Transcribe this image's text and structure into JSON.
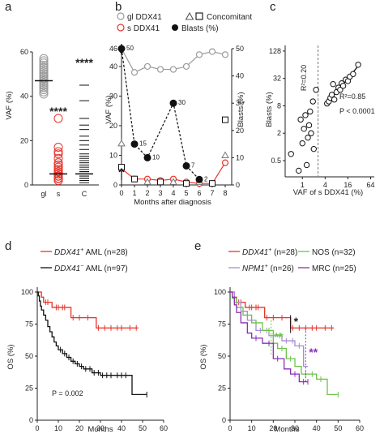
{
  "panel_letters": [
    "a",
    "b",
    "c",
    "d",
    "e"
  ],
  "colors": {
    "red": "#e8332a",
    "black": "#111111",
    "grey": "#9b9b9b",
    "green": "#6cc24a",
    "lightpurple": "#a98bd6",
    "purple": "#8a2fb8"
  },
  "chart_data": [
    {
      "id": "a",
      "type": "scatter",
      "categories": [
        "gl",
        "s",
        "C"
      ],
      "ylabel": "VAF (%)",
      "ylim": [
        0,
        60
      ],
      "yticks": [
        0,
        20,
        40,
        60
      ],
      "series": [
        {
          "category": "gl",
          "values": [
            41,
            42,
            43,
            43,
            44,
            44,
            45,
            45,
            45,
            46,
            46,
            46,
            47,
            47,
            47,
            47,
            48,
            48,
            48,
            48,
            49,
            49,
            49,
            50,
            50,
            50,
            51,
            51,
            52,
            52,
            53,
            53,
            54,
            55,
            56,
            57
          ],
          "median": 47,
          "marker": "circle-open",
          "color": "grey"
        },
        {
          "category": "s",
          "values": [
            2,
            2,
            3,
            3,
            3,
            4,
            4,
            4,
            5,
            5,
            5,
            6,
            6,
            7,
            7,
            8,
            9,
            10,
            12,
            14,
            15,
            17,
            30
          ],
          "median": 5,
          "marker": "circle-open",
          "color": "red"
        },
        {
          "category": "C",
          "values": [
            1,
            2,
            2,
            3,
            3,
            4,
            4,
            5,
            5,
            6,
            6,
            7,
            8,
            9,
            10,
            11,
            12,
            13,
            14,
            16,
            18,
            20,
            22,
            25,
            27,
            30,
            38,
            45
          ],
          "median": 5,
          "marker": "square-open",
          "color": "black"
        }
      ],
      "annotations": [
        "****",
        "****"
      ]
    },
    {
      "id": "b",
      "type": "line",
      "xlabel": "Months after diagnosis",
      "ylabel": "VAF (%)",
      "y2label": "Blasts (%)",
      "xticks": [
        0,
        1,
        2,
        3,
        4,
        5,
        6,
        7,
        8
      ],
      "xlim": [
        0,
        8
      ],
      "yticks_left": [
        0,
        10,
        20,
        30,
        40,
        46
      ],
      "yticks_right": [
        0,
        10,
        20,
        30,
        40,
        50
      ],
      "legend": [
        "gl DDX41",
        "s DDX41",
        "Concomitant",
        "Blasts (%)"
      ],
      "series": [
        {
          "name": "gl DDX41",
          "x": [
            0,
            1,
            2,
            3,
            4,
            5,
            6,
            7,
            8
          ],
          "y": [
            46,
            38,
            40,
            39,
            39,
            40,
            44,
            45,
            44
          ],
          "marker": "circle-open",
          "color": "grey"
        },
        {
          "name": "s DDX41",
          "x": [
            0,
            1,
            2,
            3,
            4,
            5,
            6,
            7,
            8
          ],
          "y": [
            5.5,
            2,
            2,
            1.5,
            2,
            1,
            0.5,
            0.5,
            7.5
          ],
          "marker": "circle-open",
          "color": "red"
        },
        {
          "name": "Concomitant",
          "x": [
            0,
            0,
            1,
            2,
            3,
            4,
            5,
            6,
            7,
            8,
            8
          ],
          "y": [
            6,
            14,
            2,
            1,
            1,
            1,
            0.5,
            1,
            0.5,
            10,
            22
          ],
          "marker": "mixed-open",
          "color": "black"
        },
        {
          "name": "Blasts (%)",
          "x": [
            0,
            1,
            2,
            4,
            5,
            6
          ],
          "y": [
            50,
            15,
            10,
            30,
            7,
            2
          ],
          "labels": [
            "50",
            "15",
            "10",
            "30",
            "7",
            "2"
          ],
          "marker": "circle-filled",
          "color": "black",
          "axis": "right"
        }
      ]
    },
    {
      "id": "c",
      "type": "scatter",
      "xlabel": "VAF of s DDX41 (%)",
      "ylabel": "Blasts (%)",
      "xticks": [
        "1",
        "4",
        "16",
        "64"
      ],
      "yticks": [
        "0.5",
        "2",
        "8",
        "32",
        "128"
      ],
      "scale": "log",
      "annotations": [
        "R²=0.20",
        "R²=0.85",
        "P < 0.0001"
      ],
      "points": [
        {
          "x": 0.5,
          "y": 0.7
        },
        {
          "x": 0.8,
          "y": 0.3
        },
        {
          "x": 0.9,
          "y": 4
        },
        {
          "x": 1.0,
          "y": 1.2
        },
        {
          "x": 1.1,
          "y": 2.5
        },
        {
          "x": 1.2,
          "y": 5
        },
        {
          "x": 1.3,
          "y": 0.4
        },
        {
          "x": 1.4,
          "y": 1.6
        },
        {
          "x": 1.5,
          "y": 3
        },
        {
          "x": 1.6,
          "y": 6
        },
        {
          "x": 1.7,
          "y": 2
        },
        {
          "x": 1.9,
          "y": 10
        },
        {
          "x": 2.0,
          "y": 0.9
        },
        {
          "x": 2.3,
          "y": 18
        },
        {
          "x": 4.5,
          "y": 9
        },
        {
          "x": 5,
          "y": 10
        },
        {
          "x": 5.5,
          "y": 12
        },
        {
          "x": 6,
          "y": 14
        },
        {
          "x": 7,
          "y": 11
        },
        {
          "x": 8,
          "y": 16
        },
        {
          "x": 9,
          "y": 20
        },
        {
          "x": 10,
          "y": 18
        },
        {
          "x": 11,
          "y": 25
        },
        {
          "x": 12,
          "y": 22
        },
        {
          "x": 14,
          "y": 30
        },
        {
          "x": 16,
          "y": 28
        },
        {
          "x": 18,
          "y": 35
        },
        {
          "x": 22,
          "y": 40
        },
        {
          "x": 30,
          "y": 64
        },
        {
          "x": 6.5,
          "y": 24
        }
      ]
    },
    {
      "id": "d",
      "type": "line",
      "xlabel": "Months",
      "ylabel": "OS (%)",
      "xticks": [
        0,
        10,
        20,
        30,
        40,
        50,
        60
      ],
      "yticks": [
        0,
        25,
        50,
        75,
        100
      ],
      "xlim": [
        0,
        60
      ],
      "ylim": [
        0,
        100
      ],
      "annotation": "P = 0.002",
      "legend": [
        {
          "prefix": "DDX41",
          "sup": "+",
          "suffix": " AML (n=28)",
          "color": "red"
        },
        {
          "prefix": "DDX41",
          "sup": "−",
          "suffix": " AML (n=97)",
          "color": "black"
        }
      ],
      "series": [
        {
          "name": "DDX41+ AML (n=28)",
          "color": "red",
          "steps": [
            [
              0,
              100
            ],
            [
              2,
              96
            ],
            [
              3,
              92
            ],
            [
              7,
              88
            ],
            [
              16,
              80
            ],
            [
              28,
              72
            ],
            [
              48,
              72
            ]
          ],
          "censors": [
            4,
            5,
            9,
            10,
            12,
            13,
            17,
            20,
            24,
            29,
            32,
            35,
            38,
            40,
            44,
            47
          ]
        },
        {
          "name": "DDX41− AML (n=97)",
          "color": "black",
          "steps": [
            [
              0,
              100
            ],
            [
              0.5,
              97
            ],
            [
              1,
              93
            ],
            [
              1.5,
              89
            ],
            [
              2,
              86
            ],
            [
              3,
              82
            ],
            [
              4,
              78
            ],
            [
              5,
              73
            ],
            [
              6,
              69
            ],
            [
              7,
              65
            ],
            [
              8,
              61
            ],
            [
              9,
              58
            ],
            [
              10,
              55
            ],
            [
              12,
              52
            ],
            [
              14,
              49
            ],
            [
              16,
              46
            ],
            [
              18,
              44
            ],
            [
              20,
              42
            ],
            [
              22,
              40
            ],
            [
              26,
              37
            ],
            [
              30,
              35
            ],
            [
              45,
              20
            ],
            [
              52,
              20
            ]
          ],
          "censors": [
            11,
            13,
            15,
            17,
            19,
            21,
            23,
            25,
            27,
            29,
            31,
            33,
            35,
            38,
            40,
            42,
            52
          ]
        }
      ]
    },
    {
      "id": "e",
      "type": "line",
      "xlabel": "Months",
      "ylabel": "OS (%)",
      "xticks": [
        0,
        10,
        20,
        30,
        40,
        50,
        60
      ],
      "yticks": [
        0,
        25,
        50,
        75,
        100
      ],
      "xlim": [
        0,
        60
      ],
      "ylim": [
        0,
        100
      ],
      "annotations": [
        "*",
        "**",
        "**"
      ],
      "legend": [
        {
          "prefix": "DDX41",
          "sup": "+",
          "suffix": " (n=28)",
          "color": "red"
        },
        {
          "prefix": "NPM1",
          "sup": "+",
          "suffix": " (n=26)",
          "color": "lightpurple"
        },
        {
          "prefix": "NOS",
          "sup": "",
          "suffix": " (n=32)",
          "color": "green"
        },
        {
          "prefix": "MRC",
          "sup": "",
          "suffix": " (n=25)",
          "color": "purple"
        }
      ],
      "series": [
        {
          "name": "DDX41+ (n=28)",
          "color": "red",
          "steps": [
            [
              0,
              100
            ],
            [
              2,
              96
            ],
            [
              3,
              92
            ],
            [
              7,
              88
            ],
            [
              16,
              80
            ],
            [
              28,
              72
            ],
            [
              48,
              72
            ]
          ],
          "censors": [
            4,
            5,
            9,
            10,
            12,
            13,
            17,
            20,
            24,
            29,
            32,
            35,
            38,
            40,
            44,
            47
          ]
        },
        {
          "name": "NPM1+ (n=26)",
          "color": "lightpurple",
          "steps": [
            [
              0,
              100
            ],
            [
              2,
              92
            ],
            [
              5,
              85
            ],
            [
              8,
              78
            ],
            [
              12,
              70
            ],
            [
              18,
              66
            ],
            [
              24,
              62
            ],
            [
              30,
              58
            ],
            [
              34,
              42
            ],
            [
              36,
              42
            ]
          ],
          "censors": [
            14,
            17,
            20,
            23,
            26,
            29,
            32
          ]
        },
        {
          "name": "NOS (n=32)",
          "color": "green",
          "steps": [
            [
              0,
              100
            ],
            [
              1,
              95
            ],
            [
              3,
              88
            ],
            [
              6,
              82
            ],
            [
              10,
              76
            ],
            [
              15,
              70
            ],
            [
              20,
              60
            ],
            [
              22,
              56
            ],
            [
              26,
              48
            ],
            [
              30,
              42
            ],
            [
              33,
              36
            ],
            [
              40,
              32
            ],
            [
              45,
              20
            ],
            [
              50,
              20
            ]
          ],
          "censors": [
            12,
            18,
            24,
            28,
            35,
            38,
            42,
            50
          ]
        },
        {
          "name": "MRC (n=25)",
          "color": "purple",
          "steps": [
            [
              0,
              100
            ],
            [
              1,
              96
            ],
            [
              2,
              90
            ],
            [
              3,
              84
            ],
            [
              5,
              76
            ],
            [
              8,
              68
            ],
            [
              10,
              64
            ],
            [
              15,
              60
            ],
            [
              20,
              48
            ],
            [
              25,
              40
            ],
            [
              28,
              36
            ],
            [
              32,
              30
            ],
            [
              36,
              30
            ]
          ],
          "censors": [
            12,
            18,
            22,
            30,
            34,
            36
          ]
        }
      ]
    }
  ]
}
